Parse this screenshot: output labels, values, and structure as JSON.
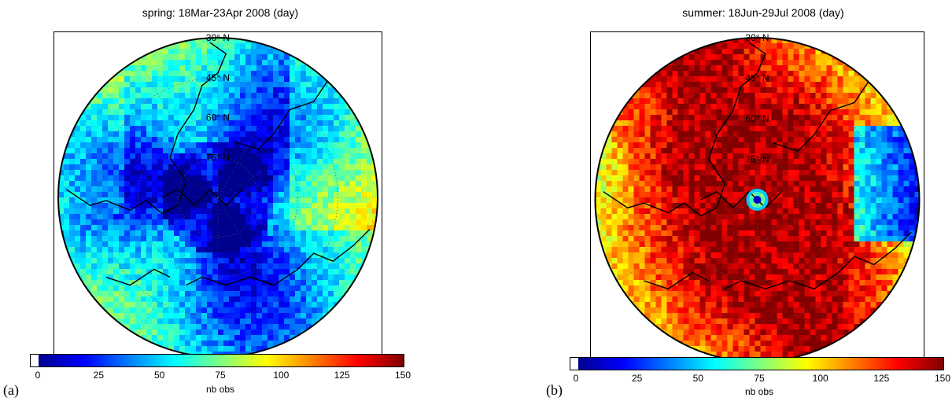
{
  "panels": [
    {
      "tag": "(a)",
      "title": "spring: 18Mar-23Apr 2008 (day)",
      "lat_labels": [
        "30° N",
        "45° N",
        "60° N",
        "75° N"
      ],
      "colorbar": {
        "label": "nb obs",
        "ticks": [
          "0",
          "25",
          "50",
          "75",
          "100",
          "125",
          "150"
        ]
      }
    },
    {
      "tag": "(b)",
      "title": "summer: 18Jun-29Jul 2008 (day)",
      "lat_labels": [
        "30° N",
        "45° N",
        "60° N",
        "75° N"
      ],
      "colorbar": {
        "label": "nb obs",
        "ticks": [
          "0",
          "25",
          "50",
          "75",
          "100",
          "125",
          "150"
        ]
      }
    }
  ],
  "chart_data": [
    {
      "type": "heatmap",
      "projection": "north polar stereographic",
      "title": "spring: 18Mar-23Apr 2008 (day)",
      "colorbar_label": "nb obs",
      "value_range": [
        0,
        150
      ],
      "colormap": "jet",
      "latitude_circles": [
        30,
        45,
        60,
        75
      ],
      "dominant_values": "mostly 10-60 obs; higher (60-100) over north Atlantic, Europe, eastern Asia; sparse/white near pole"
    },
    {
      "type": "heatmap",
      "projection": "north polar stereographic",
      "title": "summer: 18Jun-29Jul 2008 (day)",
      "colorbar_label": "nb obs",
      "value_range": [
        0,
        150
      ],
      "colormap": "jet",
      "latitude_circles": [
        30,
        45,
        60,
        75
      ],
      "dominant_values": "mostly 125-150 obs over Arctic and high latitudes; 50-100 at mid latitudes; low values at pole"
    }
  ],
  "colors": {
    "jet": [
      "#00008f",
      "#0000ff",
      "#0080ff",
      "#00ffff",
      "#80ff80",
      "#ffff00",
      "#ff8000",
      "#ff0000",
      "#800000"
    ]
  }
}
